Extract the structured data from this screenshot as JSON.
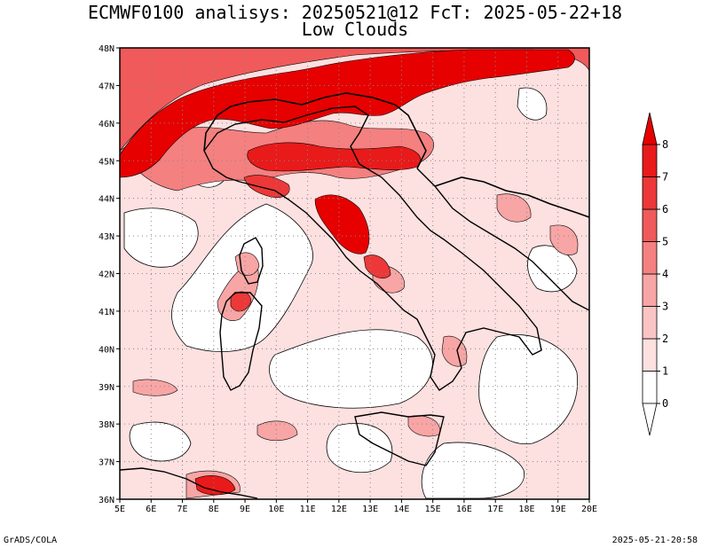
{
  "title": {
    "line1": "ECMWF0100 analisys: 20250521@12 FcT: 2025-05-22+18",
    "line2": "Low Clouds"
  },
  "map": {
    "lon_range": [
      5,
      20
    ],
    "lat_range": [
      36,
      48
    ],
    "x_ticks": [
      "5E",
      "6E",
      "7E",
      "8E",
      "9E",
      "10E",
      "11E",
      "12E",
      "13E",
      "14E",
      "15E",
      "16E",
      "17E",
      "18E",
      "19E",
      "20E"
    ],
    "y_ticks": [
      "36N",
      "37N",
      "38N",
      "39N",
      "40N",
      "41N",
      "42N",
      "43N",
      "44N",
      "45N",
      "46N",
      "47N",
      "48N"
    ],
    "grid": "dotted",
    "region": "Italy",
    "colors": {
      "level_0": "#ffffff",
      "level_1": "#fde0e0",
      "level_2": "#fbc4c4",
      "level_3": "#f8a5a5",
      "level_4": "#f48080",
      "level_5": "#f05a5a",
      "level_6": "#ec3838",
      "level_7": "#e81a1a",
      "level_8": "#e60000"
    }
  },
  "colorbar": {
    "labels": [
      "0",
      "1",
      "2",
      "3",
      "4",
      "5",
      "6",
      "7",
      "8"
    ]
  },
  "footer": {
    "left": "GrADS/COLA",
    "right": "2025-05-21-20:58"
  }
}
